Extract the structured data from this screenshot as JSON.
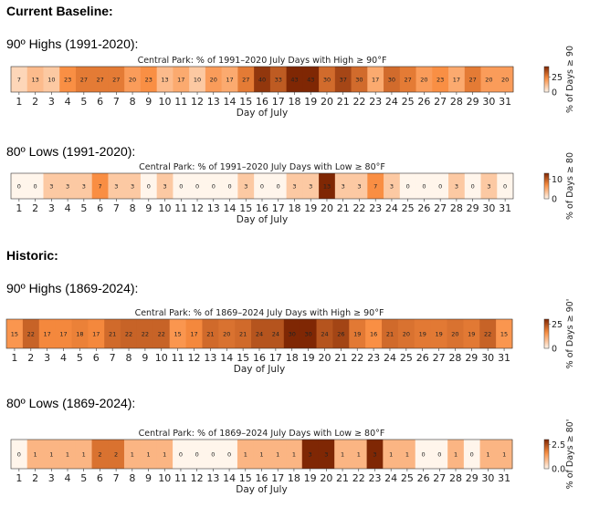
{
  "sections": {
    "current": "Current Baseline:",
    "historic": "Historic:"
  },
  "labels": {
    "highs_recent": "90º Highs (1991-2020):",
    "lows_recent": "80º Lows (1991-2020):",
    "highs_hist": "90º Highs (1869-2024):",
    "lows_hist": "80º Lows (1869-2024):"
  },
  "colors": {
    "low": "#fff5eb",
    "mid": "#f98c3f",
    "high": "#7f2704"
  },
  "chart_data": [
    {
      "type": "heatmap",
      "title": "Central Park: % of 1991–2020 July Days with High ≥ 90°F",
      "xlabel": "Day of July",
      "categories": [
        "1",
        "2",
        "3",
        "4",
        "5",
        "6",
        "7",
        "8",
        "9",
        "10",
        "11",
        "12",
        "13",
        "14",
        "15",
        "16",
        "17",
        "18",
        "19",
        "20",
        "21",
        "22",
        "23",
        "24",
        "25",
        "26",
        "27",
        "28",
        "29",
        "30",
        "31"
      ],
      "values": [
        7,
        13,
        10,
        23,
        27,
        27,
        27,
        20,
        23,
        13,
        17,
        10,
        20,
        17,
        27,
        40,
        33,
        43,
        43,
        30,
        37,
        30,
        17,
        30,
        27,
        20,
        23,
        17,
        27,
        20,
        20
      ],
      "colorbar": {
        "label": "% of Days ≥ 90",
        "ticks": [
          "25",
          "0"
        ],
        "range": [
          0,
          43
        ]
      }
    },
    {
      "type": "heatmap",
      "title": "Central Park: % of 1991–2020 July Days with Low ≥ 80°F",
      "xlabel": "Day of July",
      "categories": [
        "1",
        "2",
        "3",
        "4",
        "5",
        "6",
        "7",
        "8",
        "9",
        "10",
        "11",
        "12",
        "13",
        "14",
        "15",
        "16",
        "17",
        "18",
        "19",
        "20",
        "21",
        "22",
        "23",
        "24",
        "25",
        "26",
        "27",
        "28",
        "29",
        "30",
        "31"
      ],
      "values": [
        0,
        0,
        3,
        3,
        3,
        7,
        3,
        3,
        0,
        3,
        0,
        0,
        0,
        0,
        3,
        0,
        0,
        3,
        3,
        13,
        3,
        3,
        7,
        3,
        0,
        0,
        0,
        3,
        0,
        3,
        0
      ],
      "colorbar": {
        "label": "% of Days ≥ 80",
        "ticks": [
          "10",
          "0"
        ],
        "range": [
          0,
          13
        ]
      }
    },
    {
      "type": "heatmap",
      "title": "Central Park: % of 1869–2024 July Days with High ≥ 90°F",
      "xlabel": "Day of July",
      "categories": [
        "1",
        "2",
        "3",
        "4",
        "5",
        "6",
        "7",
        "8",
        "9",
        "10",
        "11",
        "12",
        "13",
        "14",
        "15",
        "16",
        "17",
        "18",
        "19",
        "20",
        "21",
        "22",
        "23",
        "24",
        "25",
        "26",
        "27",
        "28",
        "29",
        "30",
        "31"
      ],
      "values": [
        15,
        22,
        17,
        17,
        18,
        17,
        21,
        22,
        22,
        22,
        15,
        17,
        21,
        20,
        21,
        24,
        24,
        30,
        30,
        24,
        26,
        19,
        16,
        21,
        20,
        19,
        19,
        20,
        19,
        22,
        15
      ],
      "colorbar": {
        "label": "% of Days ≥ 90'",
        "ticks": [
          "25",
          "0"
        ],
        "range": [
          0,
          30
        ]
      }
    },
    {
      "type": "heatmap",
      "title": "Central Park: % of 1869–2024 July Days with Low ≥ 80°F",
      "xlabel": "Day of July",
      "categories": [
        "1",
        "2",
        "3",
        "4",
        "5",
        "6",
        "7",
        "8",
        "9",
        "10",
        "11",
        "12",
        "13",
        "14",
        "15",
        "16",
        "17",
        "18",
        "19",
        "20",
        "21",
        "22",
        "23",
        "24",
        "25",
        "26",
        "27",
        "28",
        "29",
        "30",
        "31"
      ],
      "values": [
        0,
        1,
        1,
        1,
        1,
        2,
        2,
        1,
        1,
        1,
        0,
        0,
        0,
        0,
        1,
        1,
        1,
        1,
        3,
        3,
        1,
        1,
        3,
        1,
        1,
        0,
        0,
        1,
        0,
        1,
        1
      ],
      "colorbar": {
        "label": "% of Days ≥ 80'",
        "ticks": [
          "2.5",
          "0.0"
        ],
        "range": [
          0,
          3
        ]
      }
    }
  ]
}
